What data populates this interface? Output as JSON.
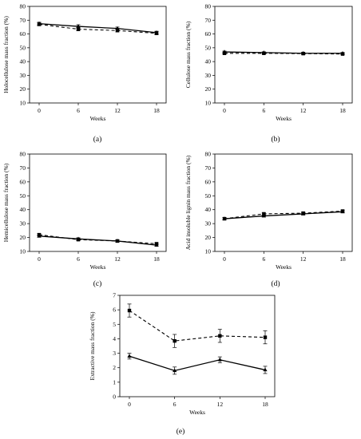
{
  "chart_data": [
    {
      "type": "line",
      "panel_label": "(a)",
      "xlabel": "Weeks",
      "ylabel": "Holocellulose mass fraction (%)",
      "x": [
        0,
        6,
        12,
        18
      ],
      "ylim": [
        10,
        80
      ],
      "yticks": [
        10,
        20,
        30,
        40,
        50,
        60,
        70,
        80
      ],
      "series": [
        {
          "style": "solid",
          "marker": "triangle",
          "values": [
            67.5,
            65.5,
            64.0,
            61.0
          ],
          "errors": [
            1.0,
            1.2,
            1.0,
            1.0
          ]
        },
        {
          "style": "dashed",
          "marker": "square",
          "values": [
            67.0,
            63.5,
            62.5,
            60.5
          ],
          "errors": [
            1.0,
            1.2,
            1.0,
            1.0
          ]
        }
      ]
    },
    {
      "type": "line",
      "panel_label": "(b)",
      "xlabel": "Weeks",
      "ylabel": "Cellulose mass fraction (%)",
      "x": [
        0,
        6,
        12,
        18
      ],
      "ylim": [
        10,
        80
      ],
      "yticks": [
        10,
        20,
        30,
        40,
        50,
        60,
        70,
        80
      ],
      "series": [
        {
          "style": "solid",
          "marker": "triangle",
          "values": [
            47.0,
            46.5,
            46.0,
            46.0
          ],
          "errors": [
            0.6,
            0.6,
            0.6,
            0.6
          ]
        },
        {
          "style": "dashed",
          "marker": "square",
          "values": [
            46.0,
            46.0,
            45.8,
            45.5
          ],
          "errors": [
            0.6,
            0.6,
            0.6,
            0.6
          ]
        }
      ]
    },
    {
      "type": "line",
      "panel_label": "(c)",
      "xlabel": "Weeks",
      "ylabel": "Hemicellulose mass fraction (%)",
      "x": [
        0,
        6,
        12,
        18
      ],
      "ylim": [
        10,
        80
      ],
      "yticks": [
        10,
        20,
        30,
        40,
        50,
        60,
        70,
        80
      ],
      "series": [
        {
          "style": "solid",
          "marker": "triangle",
          "values": [
            21.0,
            19.0,
            17.5,
            14.5
          ],
          "errors": [
            0.8,
            0.8,
            0.8,
            0.8
          ]
        },
        {
          "style": "dashed",
          "marker": "square",
          "values": [
            22.0,
            18.5,
            17.5,
            15.5
          ],
          "errors": [
            0.8,
            0.8,
            0.8,
            0.8
          ]
        }
      ]
    },
    {
      "type": "line",
      "panel_label": "(d)",
      "xlabel": "Weeks",
      "ylabel": "Acid insoluble lignin mass fraction (%)",
      "x": [
        0,
        6,
        12,
        18
      ],
      "ylim": [
        10,
        80
      ],
      "yticks": [
        10,
        20,
        30,
        40,
        50,
        60,
        70,
        80
      ],
      "series": [
        {
          "style": "solid",
          "marker": "triangle",
          "values": [
            33.5,
            35.5,
            37.0,
            38.5
          ],
          "errors": [
            0.8,
            0.8,
            0.8,
            0.8
          ]
        },
        {
          "style": "dashed",
          "marker": "square",
          "values": [
            33.5,
            37.0,
            37.5,
            39.0
          ],
          "errors": [
            0.8,
            0.8,
            0.8,
            0.8
          ]
        }
      ]
    },
    {
      "type": "line",
      "panel_label": "(e)",
      "xlabel": "Weeks",
      "ylabel": "Extractive mass fraction (%)",
      "x": [
        0,
        6,
        12,
        18
      ],
      "ylim": [
        0,
        7
      ],
      "yticks": [
        0,
        1,
        2,
        3,
        4,
        5,
        6,
        7
      ],
      "series": [
        {
          "style": "solid",
          "marker": "triangle",
          "values": [
            2.8,
            1.8,
            2.55,
            1.85
          ],
          "errors": [
            0.2,
            0.25,
            0.2,
            0.25
          ]
        },
        {
          "style": "dashed",
          "marker": "square",
          "values": [
            5.95,
            3.85,
            4.2,
            4.1
          ],
          "errors": [
            0.45,
            0.45,
            0.45,
            0.45
          ]
        }
      ]
    }
  ]
}
